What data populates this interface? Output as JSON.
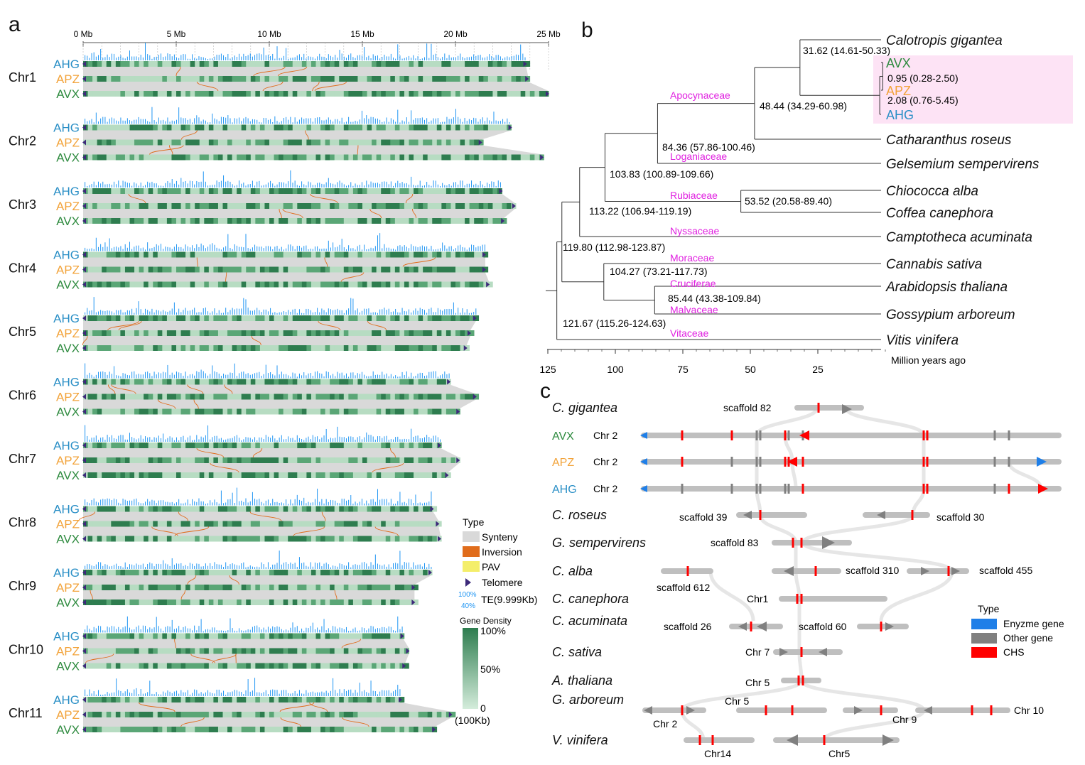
{
  "colors": {
    "ahg": "#2a8fc6",
    "apz": "#f2a33a",
    "avx": "#2d8a3e",
    "te": "#2196f3",
    "synteny": "#d9d9d9",
    "inversion": "#e06c1b",
    "pav": "#f4ee6a",
    "telomere": "#3d2a7a",
    "family": "#e020e0",
    "chs": "#ff0000",
    "enzyme": "#1f7fe8",
    "other": "#808080",
    "highlight": "#fde3f5"
  },
  "panel_a": {
    "label": "a",
    "axis_ticks": [
      "0 Mb",
      "5 Mb",
      "10 Mb",
      "15 Mb",
      "20 Mb",
      "25 Mb"
    ],
    "axis_values": [
      0,
      5,
      10,
      15,
      20,
      25
    ],
    "tracks": [
      "AHG",
      "APZ",
      "AVX"
    ],
    "chromosomes": [
      {
        "name": "Chr1",
        "lengths": [
          23.8,
          23.9,
          25.0
        ]
      },
      {
        "name": "Chr2",
        "lengths": [
          23.0,
          21.4,
          24.7
        ]
      },
      {
        "name": "Chr3",
        "lengths": [
          22.5,
          23.2,
          22.6
        ]
      },
      {
        "name": "Chr4",
        "lengths": [
          21.6,
          21.6,
          21.8
        ]
      },
      {
        "name": "Chr5",
        "lengths": [
          21.1,
          20.8,
          20.6
        ]
      },
      {
        "name": "Chr6",
        "lengths": [
          19.7,
          21.1,
          20.2
        ]
      },
      {
        "name": "Chr7",
        "lengths": [
          19.2,
          20.2,
          19.6
        ]
      },
      {
        "name": "Chr8",
        "lengths": [
          18.8,
          19.1,
          19.2
        ]
      },
      {
        "name": "Chr9",
        "lengths": [
          18.7,
          17.8,
          17.8
        ]
      },
      {
        "name": "Chr10",
        "lengths": [
          17.2,
          17.5,
          17.3
        ]
      },
      {
        "name": "Chr11",
        "lengths": [
          17.1,
          19.8,
          18.9
        ]
      }
    ],
    "legend": {
      "title": "Type",
      "items": [
        "Synteny",
        "Inversion",
        "PAV",
        "Telomere"
      ],
      "te_top": "100%",
      "te_bottom": "40%",
      "te_label": "TE(9.999Kb)",
      "density_title": "Gene Density",
      "density_ticks": [
        "100%",
        "50%",
        "0"
      ],
      "density_unit": "(100Kb)"
    }
  },
  "panel_b": {
    "label": "b",
    "axis_ticks": [
      "125",
      "100",
      "75",
      "50",
      "25"
    ],
    "axis_values": [
      125,
      100,
      75,
      50,
      25
    ],
    "axis_title": "Million years ago",
    "species": [
      "Calotropis gigantea",
      "AVX",
      "APZ",
      "AHG",
      "Catharanthus roseus",
      "Gelsemium sempervirens",
      "Chiococca alba",
      "Coffea canephora",
      "Camptotheca acuminata",
      "Cannabis sativa",
      "Arabidopsis thaliana",
      "Gossypium arboreum",
      "Vitis vinifera"
    ],
    "nodes": [
      {
        "label": "31.62 (14.61-50.33)",
        "age": 31.62
      },
      {
        "label": "0.95 (0.28-2.50)",
        "age": 0.95
      },
      {
        "label": "2.08 (0.76-5.45)",
        "age": 2.08
      },
      {
        "label": "48.44 (34.29-60.98)",
        "age": 48.44
      },
      {
        "label": "84.36 (57.86-100.46)",
        "age": 84.36
      },
      {
        "label": "103.83 (100.89-109.66)",
        "age": 103.83
      },
      {
        "label": "53.52 (20.58-89.40)",
        "age": 53.52
      },
      {
        "label": "113.22 (106.94-119.19)",
        "age": 113.22
      },
      {
        "label": "119.80 (112.98-123.87)",
        "age": 119.8
      },
      {
        "label": "104.27 (73.21-117.73)",
        "age": 104.27
      },
      {
        "label": "85.44 (43.38-109.84)",
        "age": 85.44
      },
      {
        "label": "121.67 (115.26-124.63)",
        "age": 121.67
      }
    ],
    "families": [
      "Apocynaceae",
      "Loganiaceae",
      "Rubiaceae",
      "Nyssaceae",
      "Moraceae",
      "Cruciferae",
      "Malvaceae",
      "Vitaceae"
    ]
  },
  "panel_c": {
    "label": "c",
    "species": [
      "C. gigantea",
      "AVX",
      "APZ",
      "AHG",
      "C. roseus",
      "G. sempervirens",
      "C. alba",
      "C. canephora",
      "C. acuminata",
      "C. sativa",
      "A. thaliana",
      "G. arboreum",
      "V. vinifera"
    ],
    "scaffolds": [
      "scaffold 82",
      "Chr 2",
      "Chr 2",
      "Chr 2",
      "scaffold 39",
      "scaffold 30",
      "scaffold 83",
      "scaffold 612",
      "scaffold 310",
      "scaffold 455",
      "Chr1",
      "scaffold 26",
      "scaffold 60",
      "Chr 7",
      "Chr 5",
      "Chr 5",
      "Chr 2",
      "Chr 9",
      "Chr 10",
      "Chr14",
      "Chr5"
    ],
    "legend": {
      "title": "Type",
      "items": [
        "Enyzme gene",
        "Other gene",
        "CHS"
      ]
    }
  }
}
